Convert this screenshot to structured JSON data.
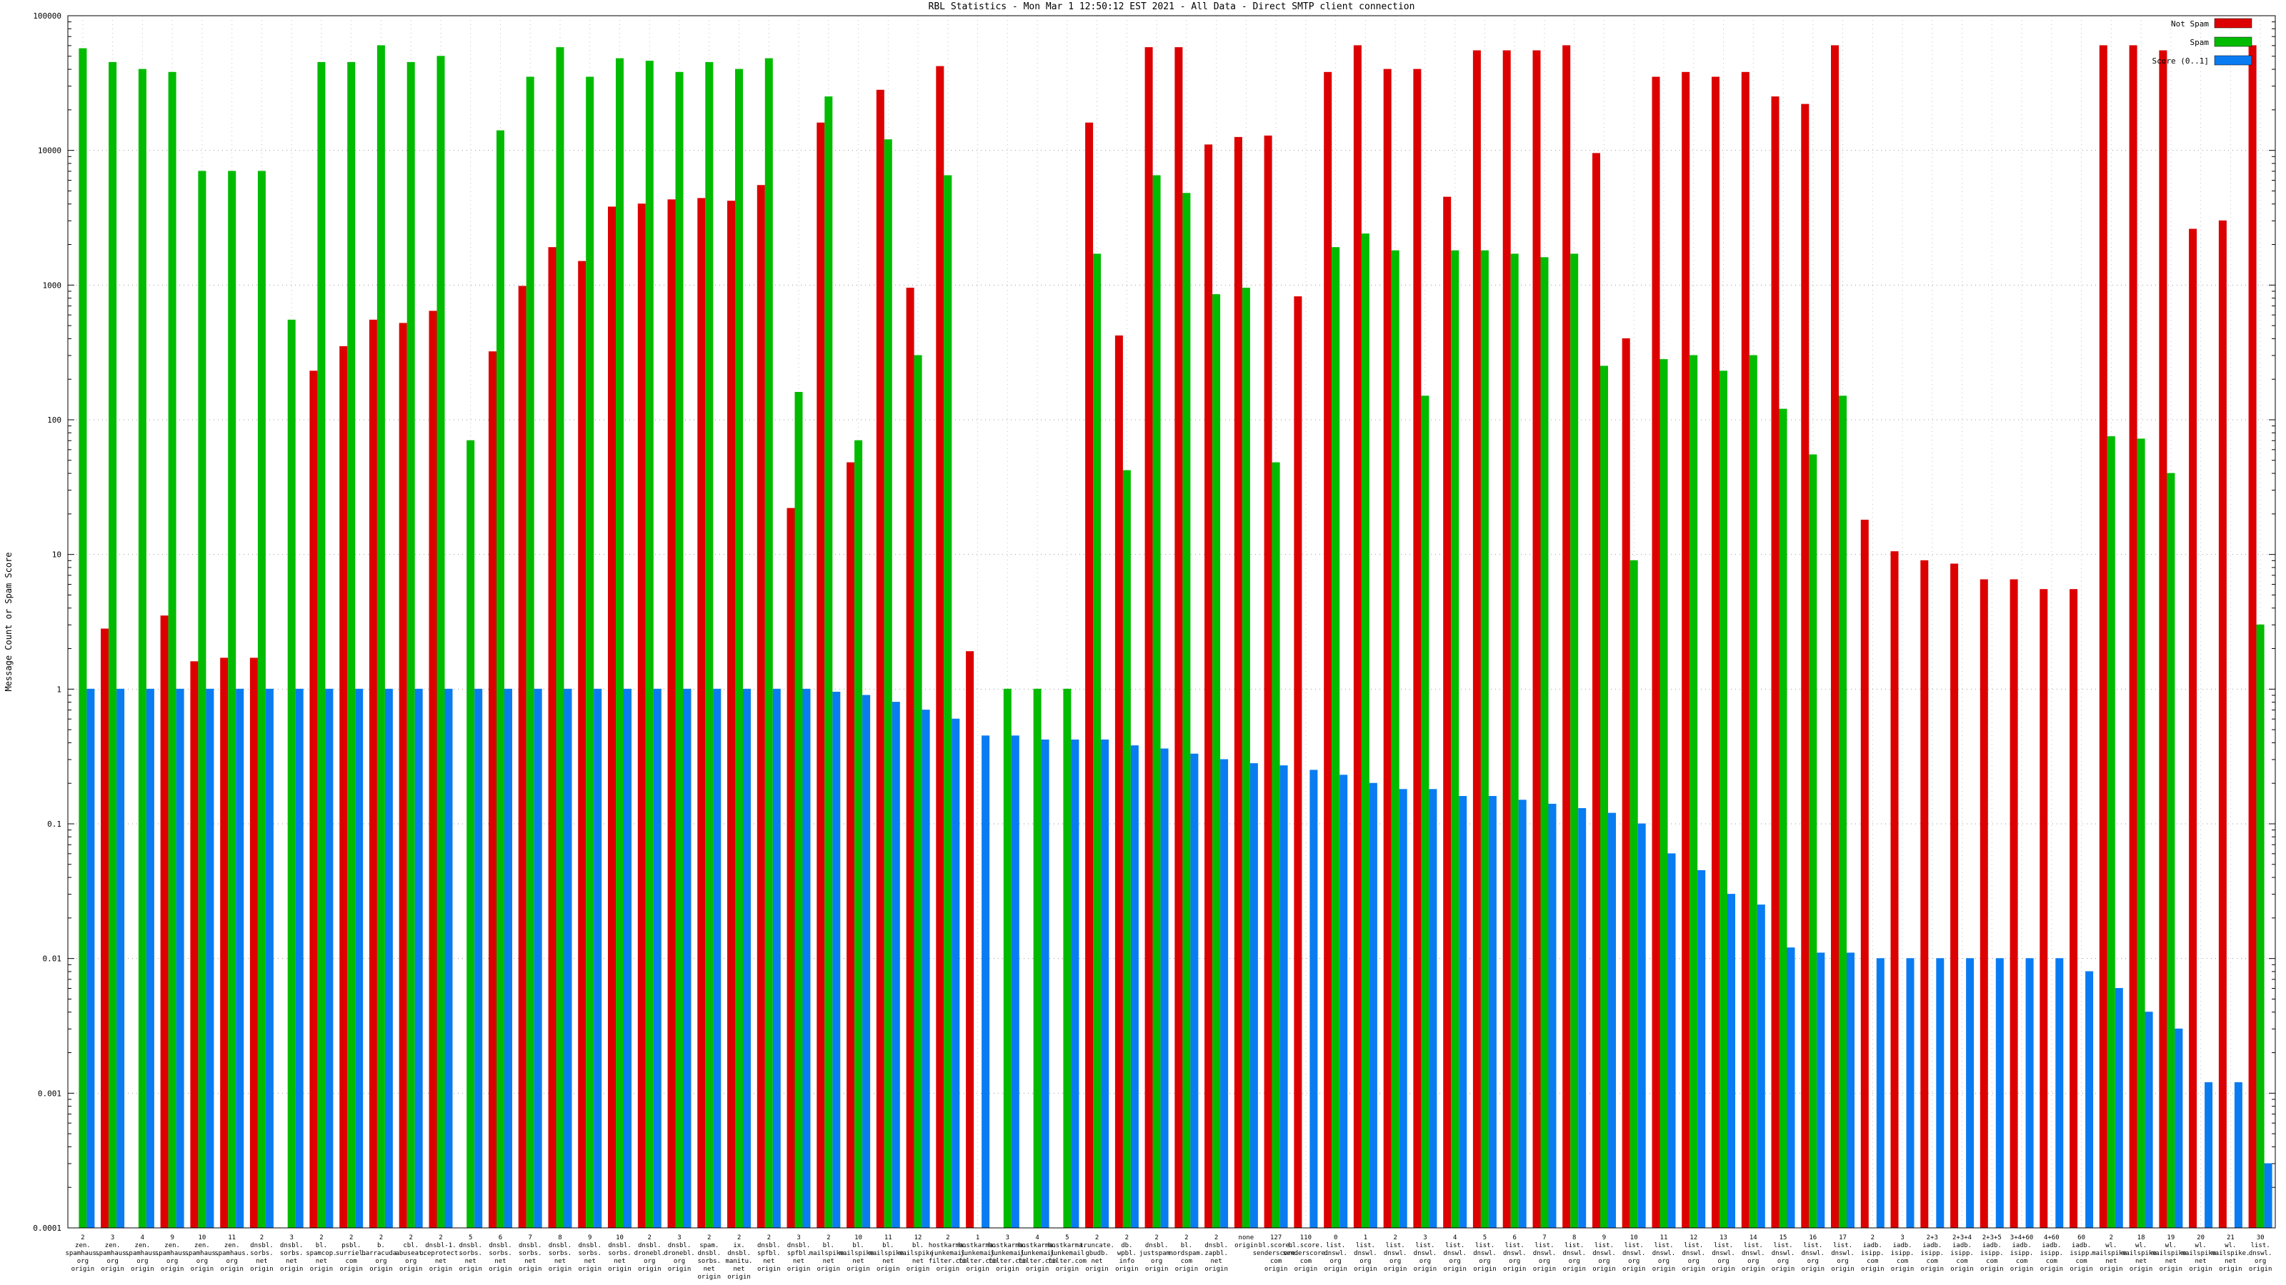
{
  "title": "RBL Statistics - Mon Mar  1 12:50:12 EST 2021 - All Data - Direct SMTP client connection",
  "chart_data": {
    "type": "bar",
    "y_scale": "log",
    "ylim": [
      0.0001,
      100000
    ],
    "grid": "dotted",
    "legend_position": "top-right",
    "title": "RBL Statistics - Mon Mar  1 12:50:12 EST 2021 - All Data - Direct SMTP client connection",
    "ylabel": "Message Count or Spam Score",
    "xlabel": "",
    "y_ticks": [
      "100000",
      "10000",
      "1000",
      "100",
      "10",
      "1",
      "0.1",
      "0.01",
      "0.001",
      "0.0001"
    ],
    "categories": [
      "2|zen.|spamhaus.|org|origin",
      "3|zen.|spamhaus.|org|origin",
      "4|zen.|spamhaus.|org|origin",
      "9|zen.|spamhaus.|org|origin",
      "10|zen.|spamhaus.|org|origin",
      "11|zen.|spamhaus.|org|origin",
      "2|dnsbl.|sorbs.|net|origin",
      "3|dnsbl.|sorbs.|net|origin",
      "2|bl.|spamcop.|net|origin",
      "2|psbl.|surriel.|com|origin",
      "2|b.|barracuda.|org|origin",
      "2|cbl.|abuseat.|org|origin",
      "2|dnsbl-1.|uceprotect.|net|origin",
      "5|dnsbl.|sorbs.|net|origin",
      "6|dnsbl.|sorbs.|net|origin",
      "7|dnsbl.|sorbs.|net|origin",
      "8|dnsbl.|sorbs.|net|origin",
      "9|dnsbl.|sorbs.|net|origin",
      "10|dnsbl.|sorbs.|net|origin",
      "2|dnsbl.|dronebl.|org|origin",
      "3|dnsbl.|dronebl.|org|origin",
      "2|spam.|dnsbl.|sorbs.|net|origin",
      "2|ix.|dnsbl.|manitu.|net|origin",
      "2|dnsbl.|spfbl.|net|origin",
      "3|dnsbl.|spfbl.|net|origin",
      "2|bl.|mailspike.|net|origin",
      "10|bl.|mailspike.|net|origin",
      "11|bl.|mailspike.|net|origin",
      "12|bl.|mailspike.|net|origin",
      "2|hostkarma.|junkemail|filter.com|origin",
      "1|hostkarma.|junkemail|filter.com|origin",
      "3|hostkarma.|junkemail|filter.com|origin",
      "4|hostkarma.|junkemail|filter.com|origin",
      "5|hostkarma.|junkemail|filter.com|origin",
      "2|truncate.|gbudb.|net|origin",
      "2|db.|wpbl.|info|origin",
      "2|dnsbl.|justspam.|org|origin",
      "2|bl.|nordspam.|com|origin",
      "2|dnsbl.|zapbl.|net|origin",
      "none|origin",
      "127|bl.score.|senderscore.|com|origin",
      "110|bl.score.|senderscore.|com|origin",
      "0|list.|dnswl.|org|origin",
      "1|list.|dnswl.|org|origin",
      "2|list.|dnswl.|org|origin",
      "3|list.|dnswl.|org|origin",
      "4|list.|dnswl.|org|origin",
      "5|list.|dnswl.|org|origin",
      "6|list.|dnswl.|org|origin",
      "7|list.|dnswl.|org|origin",
      "8|list.|dnswl.|org|origin",
      "9|list.|dnswl.|org|origin",
      "10|list.|dnswl.|org|origin",
      "11|list.|dnswl.|org|origin",
      "12|list.|dnswl.|org|origin",
      "13|list.|dnswl.|org|origin",
      "14|list.|dnswl.|org|origin",
      "15|list.|dnswl.|org|origin",
      "16|list.|dnswl.|org|origin",
      "17|list.|dnswl.|org|origin",
      "2|iadb.|isipp.|com|origin",
      "3|iadb.|isipp.|com|origin",
      "2+3|iadb.|isipp.|com|origin",
      "2+3+4|iadb.|isipp.|com|origin",
      "2+3+5|iadb.|isipp.|com|origin",
      "3+4+60|iadb.|isipp.|com|origin",
      "4+60|iadb.|isipp.|com|origin",
      "60|iadb.|isipp.|com|origin",
      "2|wl.|mailspike.|net|origin",
      "18|wl.|mailspike.|net|origin",
      "19|wl.|mailspike.|net|origin",
      "20|wl.|mailspike.|net|origin",
      "21|wl.|mailspike.|net|origin",
      "30|list.|dnswl.|org|origin"
    ],
    "series": [
      {
        "name": "Not Spam",
        "color": "#dd0000",
        "values": [
          0,
          2.8,
          0,
          3.5,
          1.6,
          1.7,
          1.7,
          0,
          230,
          350,
          550,
          520,
          640,
          0,
          320,
          980,
          1900,
          1500,
          3800,
          4000,
          4300,
          4400,
          4200,
          5500,
          22,
          16000,
          48,
          28000,
          950,
          42000,
          1.9,
          0,
          0,
          0,
          16000,
          420,
          58000,
          58000,
          11000,
          12500,
          12800,
          820,
          38000,
          60000,
          40000,
          40000,
          4500,
          55000,
          55000,
          55000,
          60000,
          9500,
          400,
          35000,
          38000,
          35000,
          38000,
          25000,
          22000,
          60000,
          18,
          10.5,
          9,
          8.5,
          6.5,
          6.5,
          5.5,
          5.5,
          60000,
          60000,
          55000,
          2600,
          3000,
          60000
        ]
      },
      {
        "name": "Spam",
        "color": "#00bb00",
        "values": [
          57000,
          45000,
          40000,
          38000,
          7000,
          7000,
          7000,
          550,
          45000,
          45000,
          60000,
          45000,
          50000,
          70,
          14000,
          35000,
          58000,
          35000,
          48000,
          46000,
          38000,
          45000,
          40000,
          48000,
          160,
          25000,
          70,
          12000,
          300,
          6500,
          0,
          1,
          1,
          1,
          1700,
          42,
          6500,
          4800,
          850,
          950,
          48,
          0,
          1900,
          2400,
          1800,
          150,
          1800,
          1800,
          1700,
          1600,
          1700,
          250,
          9,
          280,
          300,
          230,
          300,
          120,
          55,
          150,
          0,
          0,
          0,
          0,
          0,
          0,
          0,
          0,
          75,
          72,
          40,
          0,
          0,
          3
        ]
      },
      {
        "name": "Score (0..1]",
        "color": "#0a7cf2",
        "values": [
          1,
          1,
          1,
          1,
          1,
          1,
          1,
          1,
          1,
          1,
          1,
          1,
          1,
          1,
          1,
          1,
          1,
          1,
          1,
          1,
          1,
          1,
          1,
          1,
          1,
          0.95,
          0.9,
          0.8,
          0.7,
          0.6,
          0.45,
          0.45,
          0.42,
          0.42,
          0.42,
          0.38,
          0.36,
          0.33,
          0.3,
          0.28,
          0.27,
          0.25,
          0.23,
          0.2,
          0.18,
          0.18,
          0.16,
          0.16,
          0.15,
          0.14,
          0.13,
          0.12,
          0.1,
          0.06,
          0.045,
          0.03,
          0.025,
          0.012,
          0.011,
          0.011,
          0.01,
          0.01,
          0.01,
          0.01,
          0.01,
          0.01,
          0.01,
          0.008,
          0.006,
          0.004,
          0.003,
          0.0012,
          0.0012,
          0.0003
        ]
      }
    ]
  }
}
